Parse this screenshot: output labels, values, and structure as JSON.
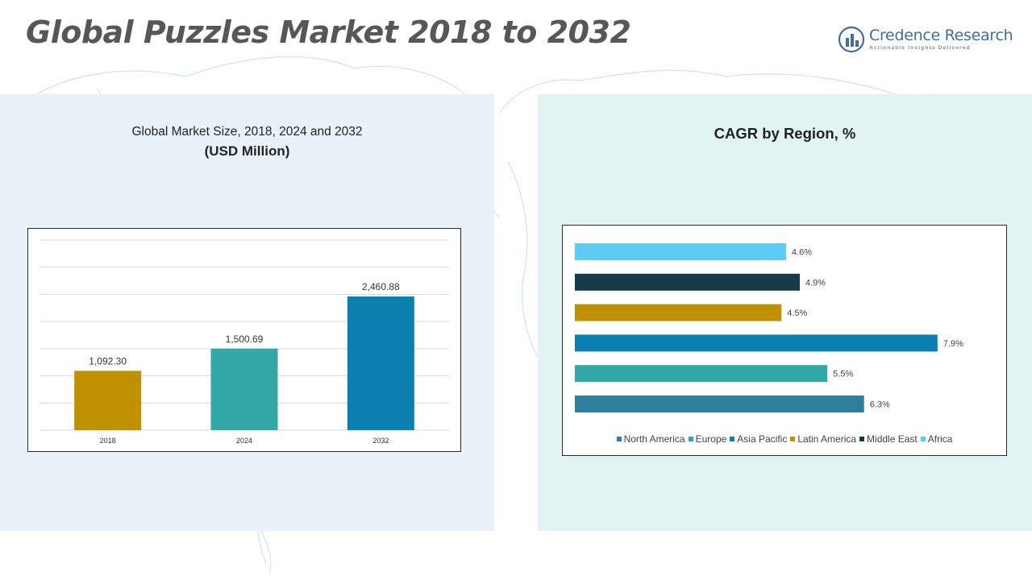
{
  "header": {
    "title": "Global Puzzles Market 2018 to 2032",
    "logo_name": "Credence Research",
    "logo_tagline": "Actionable Insights Delivered"
  },
  "colors": {
    "left_panel": "#e8f2f8",
    "right_panel": "#e1f3f3",
    "brand": "#3f6f9e"
  },
  "chart_data": [
    {
      "type": "bar",
      "title": "Global Market Size, 2018, 2024 and 2032",
      "subtitle": "(USD Million)",
      "categories": [
        "2018",
        "2024",
        "2032"
      ],
      "values": [
        1092.3,
        1500.69,
        2460.88
      ],
      "value_labels": [
        "1,092.30",
        "1,500.69",
        "2,460.88"
      ],
      "colors": [
        "#bf9000",
        "#33a6a6",
        "#0a7fb0"
      ],
      "ylim": [
        0,
        3500
      ],
      "grid": true
    },
    {
      "type": "bar",
      "orientation": "horizontal",
      "title": "CAGR by Region, %",
      "categories": [
        "Africa",
        "Middle East",
        "Latin America",
        "Asia Pacific",
        "Europe",
        "North America"
      ],
      "values": [
        4.6,
        4.9,
        4.5,
        7.9,
        5.5,
        6.3
      ],
      "value_labels": [
        "4.6%",
        "4.9%",
        "4.5%",
        "7.9%",
        "5.5%",
        "6.3%"
      ],
      "colors": [
        "#5ecbf5",
        "#163a4a",
        "#bf9000",
        "#0a7fb0",
        "#33a6a6",
        "#2e7f9e"
      ],
      "xlim": [
        0,
        8.5
      ],
      "legend": {
        "placement": "bottom",
        "items": [
          {
            "label": "North America",
            "color": "#2e7f9e"
          },
          {
            "label": "Europe",
            "color": "#33a6a6"
          },
          {
            "label": "Asia Pacific",
            "color": "#0a7fb0"
          },
          {
            "label": "Latin America",
            "color": "#bf9000"
          },
          {
            "label": "Middle East",
            "color": "#163a4a"
          },
          {
            "label": "Africa",
            "color": "#5ecbf5"
          }
        ]
      }
    }
  ]
}
